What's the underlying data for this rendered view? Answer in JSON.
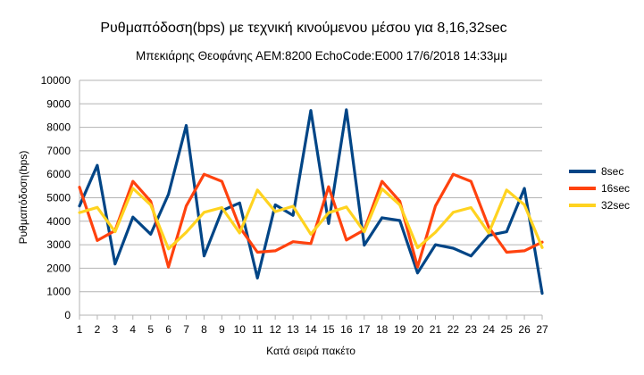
{
  "chart_data": {
    "type": "line",
    "title": "Ρυθμαπόδοση(bps) με τεχνική κινούμενου μέσου για 8,16,32sec",
    "subtitle": "Μπεκιάρης Θεοφάνης ΑΕΜ:8200 EchoCode:E000 17/6/2018 14:33μμ",
    "xlabel": "Κατά σειρά πακέτο",
    "ylabel": "Ρυθμαπόδοση(bps)",
    "ylim": [
      0,
      10000
    ],
    "ytick_step": 1000,
    "grid": true,
    "legend_position": "right",
    "categories": [
      "1",
      "2",
      "3",
      "4",
      "5",
      "6",
      "7",
      "8",
      "9",
      "10",
      "11",
      "12",
      "13",
      "14",
      "15",
      "16",
      "17",
      "18",
      "19",
      "20",
      "21",
      "22",
      "23",
      "24",
      "25",
      "26",
      "27"
    ],
    "series": [
      {
        "name": "8sec",
        "color": "#004586",
        "values": [
          4650,
          6380,
          2180,
          4180,
          3450,
          5150,
          8080,
          2520,
          4450,
          4780,
          1580,
          4700,
          4250,
          8720,
          3900,
          8750,
          2980,
          4150,
          4030,
          1800,
          3000,
          2850,
          2520,
          3400,
          3550,
          5400,
          930
        ]
      },
      {
        "name": "16sec",
        "color": "#ff420e",
        "values": [
          5450,
          3180,
          3600,
          5700,
          4850,
          2050,
          4650,
          6000,
          5700,
          3750,
          2680,
          2740,
          3130,
          3050,
          5470,
          3200,
          3630,
          5700,
          4850,
          2050,
          4650,
          6000,
          5700,
          3750,
          2680,
          2740,
          3110
        ]
      },
      {
        "name": "32sec",
        "color": "#ffd320",
        "values": [
          4370,
          4590,
          3550,
          5400,
          4700,
          2820,
          3530,
          4380,
          4580,
          3500,
          5330,
          4410,
          4640,
          3450,
          4360,
          4610,
          3550,
          5380,
          4700,
          2870,
          3530,
          4380,
          4580,
          3500,
          5330,
          4700,
          2880
        ]
      }
    ]
  }
}
